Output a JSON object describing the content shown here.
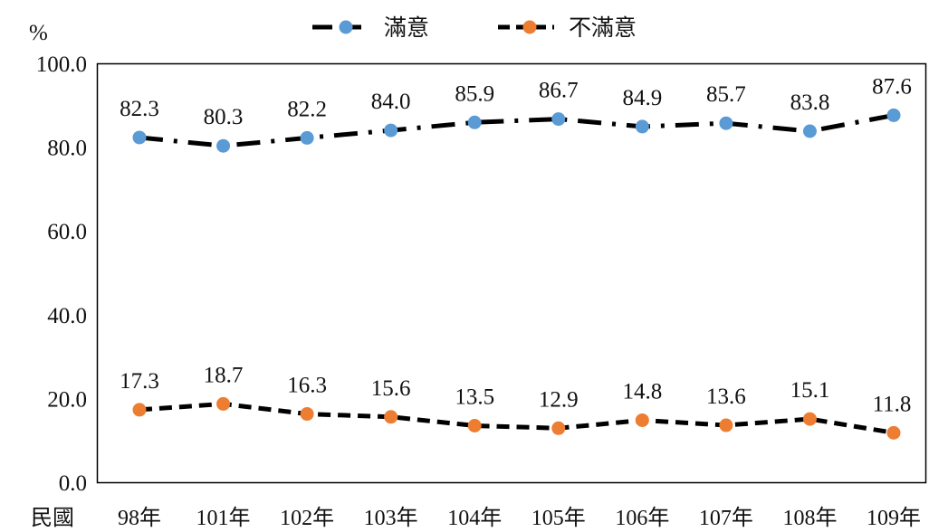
{
  "chart_data": {
    "type": "line",
    "unit_label": "%",
    "x_prefix_label": "民國",
    "categories": [
      "98年",
      "101年",
      "102年",
      "103年",
      "104年",
      "105年",
      "106年",
      "107年",
      "108年",
      "109年"
    ],
    "series": [
      {
        "name": "滿意",
        "values": [
          82.3,
          80.3,
          82.2,
          84.0,
          85.9,
          86.7,
          84.9,
          85.7,
          83.8,
          87.6
        ],
        "labels": [
          "82.3",
          "80.3",
          "82.2",
          "84.0",
          "85.9",
          "86.7",
          "84.9",
          "85.7",
          "83.8",
          "87.6"
        ],
        "marker_color": "#5b9bd5",
        "line_color": "#000000",
        "line_style": "dash-dot"
      },
      {
        "name": "不滿意",
        "values": [
          17.3,
          18.7,
          16.3,
          15.6,
          13.5,
          12.9,
          14.8,
          13.6,
          15.1,
          11.8
        ],
        "labels": [
          "17.3",
          "18.7",
          "16.3",
          "15.6",
          "13.5",
          "12.9",
          "14.8",
          "13.6",
          "15.1",
          "11.8"
        ],
        "marker_color": "#ed7d31",
        "line_color": "#000000",
        "line_style": "dashed"
      }
    ],
    "ylim": [
      0,
      100
    ],
    "yticks": [
      "0.0",
      "20.0",
      "40.0",
      "60.0",
      "80.0",
      "100.0"
    ],
    "ytick_values": [
      0,
      20,
      40,
      60,
      80,
      100
    ],
    "grid": false,
    "legend_position": "top-center"
  }
}
